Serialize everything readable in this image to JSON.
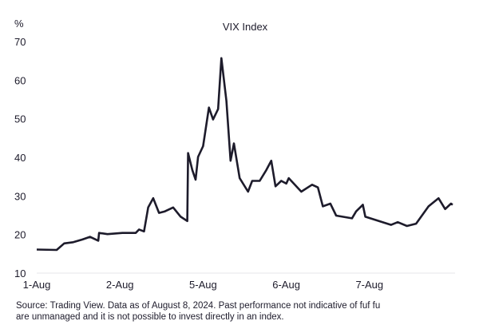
{
  "chart_data": {
    "type": "line",
    "title": "VIX Index",
    "ylabel": "%",
    "xlabel": "",
    "ylim": [
      10,
      70
    ],
    "yticks": [
      10,
      20,
      30,
      40,
      50,
      60,
      70
    ],
    "xticks": [
      {
        "x": 0,
        "label": "1-Aug"
      },
      {
        "x": 1,
        "label": "2-Aug"
      },
      {
        "x": 2,
        "label": "5-Aug"
      },
      {
        "x": 3,
        "label": "6-Aug"
      },
      {
        "x": 4,
        "label": "7-Aug"
      }
    ],
    "xlim": [
      0,
      5
    ],
    "grid": false,
    "line_color": "#1d1b2b",
    "series": [
      {
        "points": [
          [
            0,
            16.1
          ],
          [
            0.24,
            16.0
          ],
          [
            0.33,
            17.7
          ],
          [
            0.44,
            18.0
          ],
          [
            0.55,
            18.7
          ],
          [
            0.64,
            19.4
          ],
          [
            0.74,
            18.4
          ],
          [
            0.75,
            20.4
          ],
          [
            0.85,
            20.1
          ],
          [
            1.03,
            20.4
          ],
          [
            1.19,
            20.4
          ],
          [
            1.23,
            21.3
          ],
          [
            1.29,
            20.8
          ],
          [
            1.34,
            27.0
          ],
          [
            1.4,
            29.4
          ],
          [
            1.47,
            25.6
          ],
          [
            1.54,
            26.0
          ],
          [
            1.64,
            27.0
          ],
          [
            1.73,
            24.6
          ],
          [
            1.81,
            23.5
          ],
          [
            1.82,
            41.1
          ],
          [
            1.87,
            36.7
          ],
          [
            1.91,
            34.2
          ],
          [
            1.94,
            40.1
          ],
          [
            2.0,
            42.9
          ],
          [
            2.07,
            52.9
          ],
          [
            2.12,
            49.8
          ],
          [
            2.18,
            52.5
          ],
          [
            2.22,
            65.7
          ],
          [
            2.28,
            54.6
          ],
          [
            2.33,
            39.1
          ],
          [
            2.37,
            43.6
          ],
          [
            2.44,
            34.6
          ],
          [
            2.54,
            31.1
          ],
          [
            2.59,
            33.9
          ],
          [
            2.68,
            33.9
          ],
          [
            2.76,
            36.7
          ],
          [
            2.82,
            39.1
          ],
          [
            2.87,
            32.5
          ],
          [
            2.94,
            33.9
          ],
          [
            3.0,
            33.2
          ],
          [
            3.03,
            34.6
          ],
          [
            3.18,
            31.1
          ],
          [
            3.31,
            32.9
          ],
          [
            3.38,
            32.2
          ],
          [
            3.44,
            27.3
          ],
          [
            3.53,
            28.0
          ],
          [
            3.6,
            24.9
          ],
          [
            3.79,
            24.2
          ],
          [
            3.84,
            26.0
          ],
          [
            3.92,
            27.7
          ],
          [
            3.95,
            24.6
          ],
          [
            4.26,
            22.5
          ],
          [
            4.34,
            23.2
          ],
          [
            4.45,
            22.2
          ],
          [
            4.56,
            22.8
          ],
          [
            4.71,
            27.3
          ],
          [
            4.83,
            29.4
          ],
          [
            4.91,
            26.6
          ],
          [
            4.98,
            28.0
          ],
          [
            5.0,
            27.7
          ]
        ]
      }
    ]
  },
  "footer": {
    "line1": "Source: Trading View. Data as of August 8, 2024. Past performance not indicative of fuf fu",
    "line2": "are unmanaged and it is not possible to invest directly in an index."
  }
}
